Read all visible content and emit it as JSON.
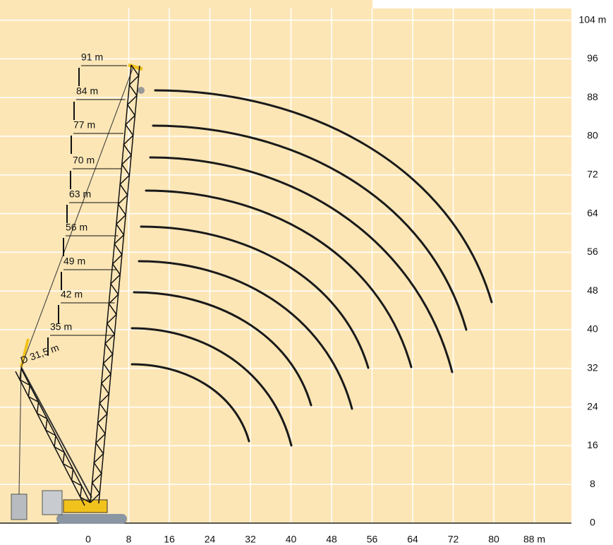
{
  "y_axis": {
    "labels": [
      "0",
      "8",
      "16",
      "24",
      "32",
      "40",
      "48",
      "56",
      "64",
      "72",
      "80",
      "88",
      "96",
      "104 m"
    ]
  },
  "x_axis": {
    "labels": [
      "0",
      "8",
      "16",
      "24",
      "32",
      "40",
      "48",
      "56",
      "64",
      "72",
      "80",
      "88 m"
    ]
  },
  "boom_lengths": [
    "91 m",
    "84 m",
    "77 m",
    "70 m",
    "63 m",
    "56 m",
    "49 m",
    "42 m",
    "35 m"
  ],
  "derrick_label": "D 31,5 m"
}
